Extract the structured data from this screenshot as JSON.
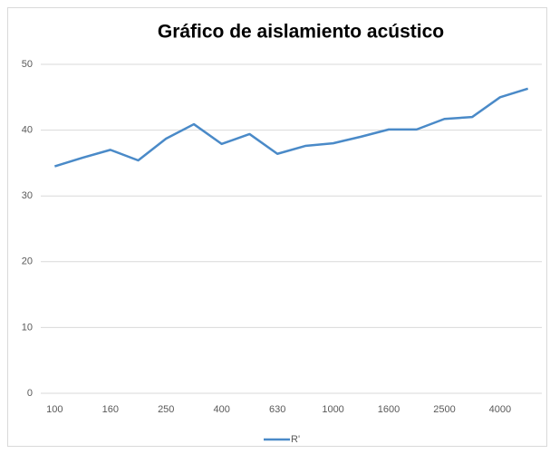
{
  "chart_data": {
    "type": "line",
    "title": "Gráfico de aislamiento acústico",
    "categories": [
      "100",
      null,
      "160",
      null,
      "250",
      null,
      "400",
      null,
      "630",
      null,
      "1000",
      null,
      "1600",
      null,
      "2500",
      null,
      "4000",
      null
    ],
    "series": [
      {
        "name": "R'",
        "color": "#4a8ac8",
        "values": [
          34.5,
          35.8,
          37.0,
          35.4,
          38.7,
          40.9,
          37.9,
          39.4,
          36.4,
          37.6,
          38.0,
          39.0,
          40.1,
          40.1,
          41.7,
          42.0,
          45.0,
          46.3
        ]
      }
    ],
    "ylim": [
      0,
      50
    ],
    "yticks": [
      0,
      10,
      20,
      30,
      40,
      50
    ],
    "grid": true,
    "legend": "bottom"
  }
}
